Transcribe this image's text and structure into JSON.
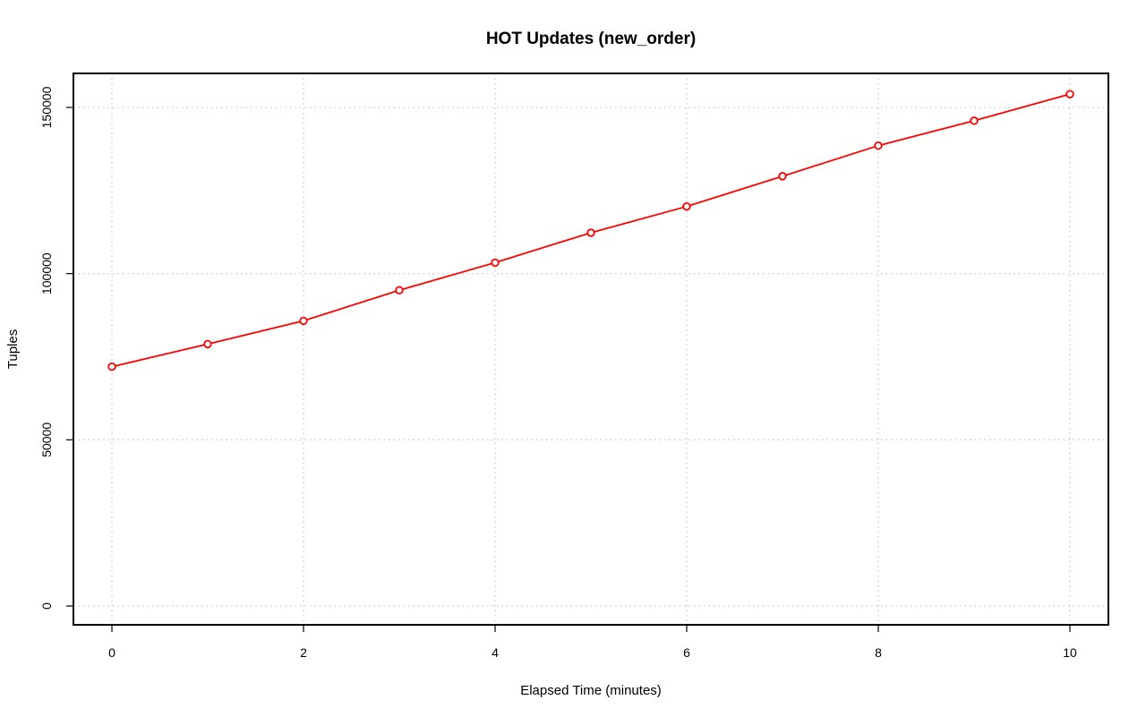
{
  "chart_data": {
    "type": "line",
    "title": "HOT Updates (new_order)",
    "xlabel": "Elapsed Time (minutes)",
    "ylabel": "Tuples",
    "xlim": [
      0,
      10
    ],
    "ylim": [
      0,
      155000
    ],
    "x_ticks": [
      0,
      2,
      4,
      6,
      8,
      10
    ],
    "y_ticks": [
      0,
      50000,
      100000,
      150000
    ],
    "grid": true,
    "series": [
      {
        "color": "#ff0000",
        "x": [
          0,
          1,
          2,
          3,
          4,
          5,
          6,
          7,
          8,
          9,
          10
        ],
        "y": [
          72000,
          78800,
          85800,
          95000,
          103300,
          112300,
          120200,
          129300,
          138500,
          146000,
          154000
        ]
      }
    ]
  }
}
